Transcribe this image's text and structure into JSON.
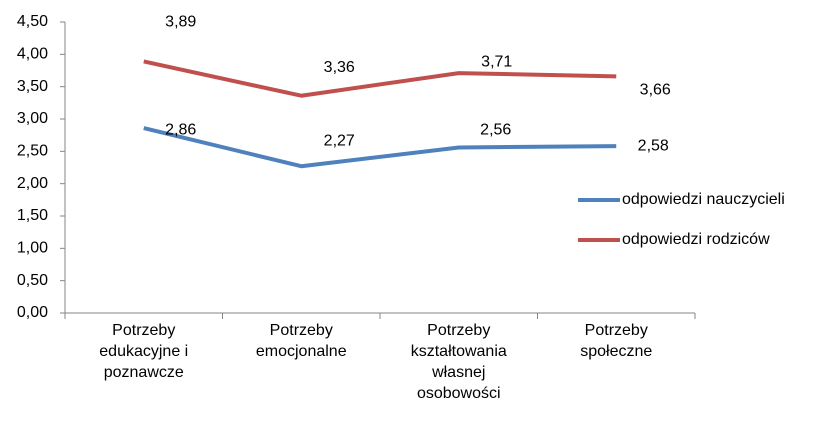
{
  "chart_data": {
    "type": "line",
    "categories": [
      "Potrzeby\nedukacyjne i\npoznawcze",
      "Potrzeby\nemocjonalne",
      "Potrzeby\nkształtowania\nwłasnej\nosobowości",
      "Potrzeby\nspołeczne"
    ],
    "series": [
      {
        "name": "odpowiedzi nauczycieli",
        "color": "#4f81bd",
        "values": [
          2.86,
          2.27,
          2.56,
          2.58
        ],
        "value_labels": [
          "2,86",
          "2,27",
          "2,56",
          "2,58"
        ]
      },
      {
        "name": "odpowiedzi rodziców",
        "color": "#c0504d",
        "values": [
          3.89,
          3.36,
          3.71,
          3.66
        ],
        "value_labels": [
          "3,89",
          "3,36",
          "3,71",
          "3,66"
        ]
      }
    ],
    "ylim": [
      0,
      4.5
    ],
    "yticks": [
      {
        "value": 0,
        "label": "0,00"
      },
      {
        "value": 0.5,
        "label": "0,50"
      },
      {
        "value": 1,
        "label": "1,00"
      },
      {
        "value": 1.5,
        "label": "1,50"
      },
      {
        "value": 2,
        "label": "2,00"
      },
      {
        "value": 2.5,
        "label": "2,50"
      },
      {
        "value": 3,
        "label": "3,00"
      },
      {
        "value": 3.5,
        "label": "3,50"
      },
      {
        "value": 4,
        "label": "4,00"
      },
      {
        "value": 4.5,
        "label": "4,50"
      }
    ],
    "grid": false,
    "legend": "right"
  }
}
